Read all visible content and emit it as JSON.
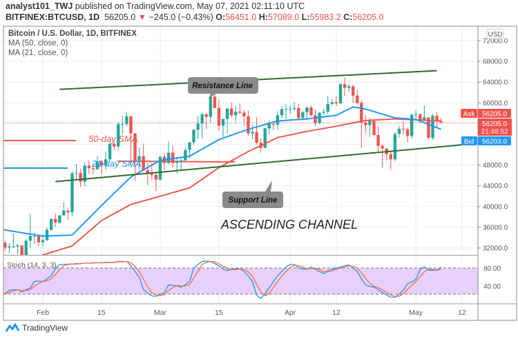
{
  "header": {
    "author": "analyst101_TWJ",
    "published": "published on TradingView.com, May 07, 2021 02:11:10 UTC",
    "symbol": "BITFINEX:BTCUSD, 1D",
    "last": "56205.0",
    "change": "−245.0 (−0.43%)",
    "o_label": "O:",
    "o": "56451.0",
    "h_label": "H:",
    "h": "57089.0",
    "l_label": "L:",
    "l": "55983.2",
    "c_label": "C:",
    "c": "56205.0"
  },
  "legend": {
    "title": "Bitcoin / U.S. Dollar, 1D, BITFINEX",
    "ma50": "MA (50, close, 0)",
    "ma21": "MA (21, close, 0)"
  },
  "annotations": {
    "resistance": "Resistance Line",
    "support": "Support Line",
    "channel": "ASCENDING CHANNEL",
    "sma50": "50-day SMA",
    "sma21": "21-day SMA"
  },
  "price_axis": {
    "currency": "USD",
    "ticks": [
      "72000.0",
      "68000.0",
      "64000.0",
      "60000.0",
      "48000.0",
      "44000.0",
      "40000.0",
      "36000.0",
      "32000.0"
    ],
    "ask_label": "Ask",
    "ask": "56205.0",
    "last": "56205.0",
    "countdown": "21:48:52",
    "bid_label": "Bid",
    "bid": "56203.0"
  },
  "stoch": {
    "label": "Stoch (14, 3, 3)",
    "ticks": [
      "80.00",
      "40.00"
    ],
    "bands": [
      20,
      80
    ]
  },
  "branding": {
    "name": "TradingView"
  },
  "colors": {
    "up": "#26a69a",
    "down": "#ef5350",
    "ma50": "#f0574b",
    "ma21": "#2196f3",
    "trend": "#2e6b2b",
    "stoch_k": "#2196f3",
    "stoch_d": "#ff6a3d",
    "stoch_fill": "#e8d0fc"
  },
  "chart_data": {
    "type": "candlestick",
    "title": "Bitcoin / U.S. Dollar, 1D, BITFINEX",
    "ylim": [
      30000,
      74000
    ],
    "grid": true,
    "x_ticks": [
      {
        "label": "Feb",
        "date": "2021-02-01"
      },
      {
        "label": "15",
        "date": "2021-02-15"
      },
      {
        "label": "Mar",
        "date": "2021-03-01"
      },
      {
        "label": "15",
        "date": "2021-03-15"
      },
      {
        "label": "Apr",
        "date": "2021-04-01"
      },
      {
        "label": "12",
        "date": "2021-04-12"
      },
      {
        "label": "May",
        "date": "2021-05-01"
      },
      {
        "label": "12",
        "date": "2021-05-12"
      }
    ],
    "candles_columns": [
      "date",
      "open",
      "high",
      "low",
      "close"
    ],
    "candles": [
      [
        "2021-01-22",
        30800,
        33800,
        28800,
        33000
      ],
      [
        "2021-01-23",
        33000,
        33400,
        31400,
        32100
      ],
      [
        "2021-01-24",
        32100,
        32900,
        31000,
        32300
      ],
      [
        "2021-01-25",
        32300,
        34800,
        32000,
        32300
      ],
      [
        "2021-01-26",
        32300,
        32800,
        30800,
        32500
      ],
      [
        "2021-01-27",
        32500,
        32500,
        29200,
        30400
      ],
      [
        "2021-01-28",
        30400,
        33800,
        29900,
        33400
      ],
      [
        "2021-01-29",
        33400,
        38500,
        31900,
        34300
      ],
      [
        "2021-01-30",
        34300,
        34900,
        32800,
        34300
      ],
      [
        "2021-01-31",
        34300,
        34300,
        32300,
        33100
      ],
      [
        "2021-02-01",
        33100,
        34700,
        32300,
        33500
      ],
      [
        "2021-02-02",
        33500,
        35900,
        33400,
        35500
      ],
      [
        "2021-02-03",
        35500,
        37700,
        35400,
        37600
      ],
      [
        "2021-02-04",
        37600,
        38700,
        36100,
        36900
      ],
      [
        "2021-02-05",
        36900,
        38300,
        36600,
        38300
      ],
      [
        "2021-02-06",
        38300,
        40900,
        38200,
        39200
      ],
      [
        "2021-02-07",
        39200,
        39700,
        37400,
        38900
      ],
      [
        "2021-02-08",
        38900,
        46800,
        38100,
        46400
      ],
      [
        "2021-02-09",
        46400,
        48200,
        45100,
        46500
      ],
      [
        "2021-02-10",
        46500,
        47300,
        43800,
        44800
      ],
      [
        "2021-02-11",
        44800,
        48600,
        44000,
        47900
      ],
      [
        "2021-02-12",
        47900,
        48900,
        46300,
        47400
      ],
      [
        "2021-02-13",
        47400,
        48200,
        46300,
        47200
      ],
      [
        "2021-02-14",
        47200,
        49700,
        47100,
        48700
      ],
      [
        "2021-02-15",
        48700,
        49000,
        46200,
        47900
      ],
      [
        "2021-02-16",
        47900,
        50600,
        47100,
        49100
      ],
      [
        "2021-02-17",
        49100,
        52600,
        48900,
        52100
      ],
      [
        "2021-02-18",
        52100,
        52500,
        50900,
        51600
      ],
      [
        "2021-02-19",
        51600,
        56300,
        50800,
        55900
      ],
      [
        "2021-02-20",
        55900,
        57500,
        53900,
        55900
      ],
      [
        "2021-02-21",
        55900,
        58300,
        55500,
        57400
      ],
      [
        "2021-02-22",
        57400,
        57500,
        47600,
        54100
      ],
      [
        "2021-02-23",
        54100,
        54200,
        45000,
        48900
      ],
      [
        "2021-02-24",
        48900,
        51400,
        47200,
        49700
      ],
      [
        "2021-02-25",
        49700,
        52100,
        46900,
        47000
      ],
      [
        "2021-02-26",
        47000,
        48400,
        44100,
        46300
      ],
      [
        "2021-02-27",
        46300,
        48300,
        45100,
        46100
      ],
      [
        "2021-02-28",
        46100,
        46600,
        43000,
        45200
      ],
      [
        "2021-03-01",
        45200,
        49800,
        45000,
        49600
      ],
      [
        "2021-03-02",
        49600,
        50200,
        47100,
        48400
      ],
      [
        "2021-03-03",
        48400,
        52600,
        48100,
        50400
      ],
      [
        "2021-03-04",
        50400,
        51800,
        47500,
        48400
      ],
      [
        "2021-03-05",
        48400,
        49400,
        46300,
        48800
      ],
      [
        "2021-03-06",
        48800,
        49200,
        47100,
        48900
      ],
      [
        "2021-03-07",
        48900,
        51400,
        48900,
        50900
      ],
      [
        "2021-03-08",
        50900,
        52400,
        49300,
        52400
      ],
      [
        "2021-03-09",
        52400,
        54900,
        51900,
        54800
      ],
      [
        "2021-03-10",
        54800,
        57400,
        53100,
        56000
      ],
      [
        "2021-03-11",
        56000,
        58100,
        53100,
        57800
      ],
      [
        "2021-03-12",
        57800,
        58000,
        55000,
        57300
      ],
      [
        "2021-03-13",
        57300,
        61700,
        56100,
        61200
      ],
      [
        "2021-03-14",
        61200,
        61700,
        59000,
        59000
      ],
      [
        "2021-03-15",
        59000,
        60600,
        54600,
        55600
      ],
      [
        "2021-03-16",
        55600,
        56900,
        53400,
        56900
      ],
      [
        "2021-03-17",
        56900,
        58900,
        54100,
        58900
      ],
      [
        "2021-03-18",
        58900,
        60100,
        57100,
        57600
      ],
      [
        "2021-03-19",
        57600,
        59400,
        56300,
        58300
      ],
      [
        "2021-03-20",
        58300,
        59900,
        57800,
        58100
      ],
      [
        "2021-03-21",
        58100,
        58600,
        55500,
        57400
      ],
      [
        "2021-03-22",
        57400,
        58500,
        53700,
        54100
      ],
      [
        "2021-03-23",
        54100,
        55800,
        53000,
        54400
      ],
      [
        "2021-03-24",
        54400,
        57200,
        52000,
        52300
      ],
      [
        "2021-03-25",
        52300,
        53200,
        50400,
        51300
      ],
      [
        "2021-03-26",
        51300,
        55100,
        51300,
        55100
      ],
      [
        "2021-03-27",
        55100,
        56600,
        53900,
        55900
      ],
      [
        "2021-03-28",
        55900,
        56500,
        54700,
        55800
      ],
      [
        "2021-03-29",
        55800,
        58400,
        54900,
        57600
      ],
      [
        "2021-03-30",
        57600,
        59400,
        57000,
        58800
      ],
      [
        "2021-03-31",
        58800,
        59800,
        56900,
        58800
      ],
      [
        "2021-04-01",
        58800,
        59500,
        57900,
        58800
      ],
      [
        "2021-04-02",
        58800,
        60100,
        58500,
        59000
      ],
      [
        "2021-04-03",
        59000,
        59800,
        56900,
        57100
      ],
      [
        "2021-04-04",
        57100,
        58500,
        56600,
        58200
      ],
      [
        "2021-04-05",
        58200,
        59300,
        56700,
        59100
      ],
      [
        "2021-04-06",
        59100,
        59500,
        57400,
        57600
      ],
      [
        "2021-04-07",
        57600,
        58700,
        55500,
        56100
      ],
      [
        "2021-04-08",
        56100,
        58200,
        55900,
        58100
      ],
      [
        "2021-04-09",
        58100,
        58900,
        57700,
        58300
      ],
      [
        "2021-04-10",
        58300,
        61300,
        57900,
        59800
      ],
      [
        "2021-04-11",
        59800,
        60700,
        59400,
        60100
      ],
      [
        "2021-04-12",
        60100,
        61300,
        59400,
        59900
      ],
      [
        "2021-04-13",
        59900,
        63800,
        59800,
        63600
      ],
      [
        "2021-04-14",
        63600,
        64900,
        61300,
        62900
      ],
      [
        "2021-04-15",
        62900,
        63800,
        62100,
        63200
      ],
      [
        "2021-04-16",
        63200,
        63500,
        60000,
        61400
      ],
      [
        "2021-04-17",
        61400,
        62500,
        59600,
        60000
      ],
      [
        "2021-04-18",
        60000,
        60400,
        51300,
        56200
      ],
      [
        "2021-04-19",
        56200,
        57600,
        54200,
        55700
      ],
      [
        "2021-04-20",
        55700,
        57100,
        53400,
        56500
      ],
      [
        "2021-04-21",
        56500,
        56800,
        53600,
        53800
      ],
      [
        "2021-04-22",
        53800,
        55500,
        50600,
        51700
      ],
      [
        "2021-04-23",
        51700,
        52100,
        47600,
        51200
      ],
      [
        "2021-04-24",
        51200,
        51200,
        48800,
        50100
      ],
      [
        "2021-04-25",
        50100,
        50600,
        47100,
        49100
      ],
      [
        "2021-04-26",
        49100,
        54400,
        48800,
        54000
      ],
      [
        "2021-04-27",
        54000,
        55500,
        53300,
        55000
      ],
      [
        "2021-04-28",
        55000,
        56400,
        53900,
        54900
      ],
      [
        "2021-04-29",
        54900,
        55200,
        52400,
        53600
      ],
      [
        "2021-04-30",
        53600,
        58000,
        53100,
        57700
      ],
      [
        "2021-05-01",
        57700,
        58500,
        57000,
        57800
      ],
      [
        "2021-05-02",
        57800,
        57900,
        56000,
        56600
      ],
      [
        "2021-05-03",
        56600,
        59500,
        56500,
        57200
      ],
      [
        "2021-05-04",
        57200,
        57200,
        53100,
        53200
      ],
      [
        "2021-05-05",
        53200,
        57900,
        52900,
        57500
      ],
      [
        "2021-05-06",
        57500,
        58300,
        55300,
        56400
      ],
      [
        "2021-05-07",
        56451,
        57089,
        55983.2,
        56205
      ]
    ],
    "series": [
      {
        "name": "MA (50, close, 0)",
        "points": [
          [
            "2021-01-31",
            30400
          ],
          [
            "2021-02-08",
            32400
          ],
          [
            "2021-02-15",
            37300
          ],
          [
            "2021-02-22",
            40400
          ],
          [
            "2021-03-01",
            42000
          ],
          [
            "2021-03-08",
            43600
          ],
          [
            "2021-03-15",
            47500
          ],
          [
            "2021-03-22",
            50600
          ],
          [
            "2021-03-29",
            53300
          ],
          [
            "2021-04-05",
            54500
          ],
          [
            "2021-04-12",
            55500
          ],
          [
            "2021-04-19",
            56600
          ],
          [
            "2021-04-26",
            56900
          ],
          [
            "2021-05-07",
            56500
          ]
        ]
      },
      {
        "name": "MA (21, close, 0)",
        "points": [
          [
            "2021-01-22",
            35600
          ],
          [
            "2021-02-01",
            34300
          ],
          [
            "2021-02-08",
            34500
          ],
          [
            "2021-02-15",
            40200
          ],
          [
            "2021-02-22",
            45700
          ],
          [
            "2021-03-01",
            48900
          ],
          [
            "2021-03-08",
            49700
          ],
          [
            "2021-03-15",
            52900
          ],
          [
            "2021-03-22",
            54900
          ],
          [
            "2021-03-29",
            56500
          ],
          [
            "2021-04-05",
            56900
          ],
          [
            "2021-04-12",
            57600
          ],
          [
            "2021-04-16",
            59200
          ],
          [
            "2021-04-19",
            58800
          ],
          [
            "2021-04-26",
            57100
          ],
          [
            "2021-05-01",
            56800
          ],
          [
            "2021-05-07",
            54900
          ]
        ]
      }
    ],
    "trendlines": [
      {
        "name": "Resistance Line",
        "from": [
          "2021-02-05",
          62600
        ],
        "to": [
          "2021-05-06",
          66200
        ]
      },
      {
        "name": "Support Line",
        "from": [
          "2021-02-04",
          44800
        ],
        "to": [
          "2021-05-12",
          51900
        ]
      }
    ],
    "stochastic": {
      "ylim": [
        0,
        100
      ],
      "k": [
        21,
        21,
        29,
        30,
        30,
        25,
        30,
        34,
        49,
        50,
        49,
        55,
        62,
        79,
        88,
        88,
        89,
        89,
        90,
        90,
        91,
        91,
        92,
        92,
        92,
        93,
        93,
        93,
        95,
        95,
        95,
        85,
        72,
        59,
        31,
        22,
        16,
        15,
        19,
        24,
        41,
        40,
        39,
        36,
        42,
        49,
        80,
        88,
        95,
        96,
        95,
        90,
        85,
        78,
        74,
        77,
        78,
        78,
        72,
        62,
        49,
        18,
        10,
        21,
        35,
        49,
        62,
        72,
        82,
        88,
        88,
        80,
        78,
        77,
        82,
        77,
        72,
        67,
        74,
        77,
        80,
        82,
        85,
        87,
        80,
        72,
        55,
        41,
        38,
        36,
        30,
        24,
        18,
        13,
        13,
        20,
        29,
        44,
        48,
        54,
        77,
        82,
        75,
        75,
        75,
        82
      ],
      "d": [
        21,
        21,
        24,
        27,
        30,
        28,
        28,
        30,
        38,
        44,
        49,
        51,
        55,
        65,
        76,
        85,
        88,
        89,
        89,
        90,
        91,
        91,
        91,
        92,
        92,
        92,
        93,
        93,
        94,
        94,
        95,
        92,
        84,
        72,
        54,
        37,
        23,
        18,
        17,
        19,
        28,
        35,
        40,
        38,
        39,
        42,
        57,
        72,
        88,
        93,
        95,
        94,
        90,
        84,
        79,
        76,
        76,
        78,
        76,
        71,
        61,
        43,
        26,
        16,
        22,
        35,
        49,
        61,
        72,
        81,
        86,
        85,
        82,
        78,
        79,
        79,
        77,
        72,
        71,
        73,
        77,
        80,
        82,
        85,
        84,
        80,
        69,
        56,
        45,
        38,
        35,
        30,
        24,
        18,
        15,
        15,
        21,
        31,
        40,
        49,
        60,
        71,
        78,
        77,
        75,
        77
      ]
    }
  }
}
